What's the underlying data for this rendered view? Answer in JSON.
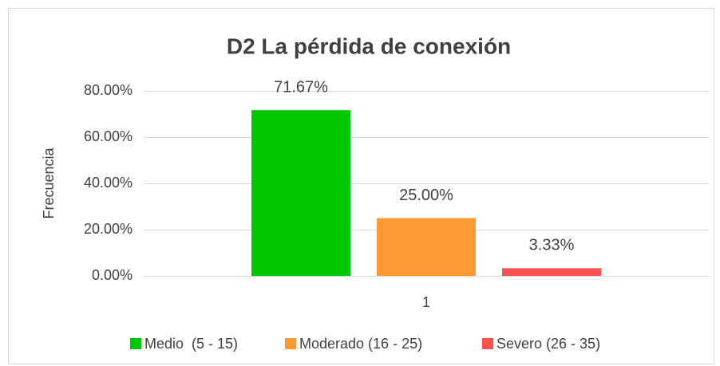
{
  "chart_data": {
    "type": "bar",
    "title": "D2 La pérdida de conexión",
    "y_label": "Frecuencia",
    "categories": [
      "1"
    ],
    "series": [
      {
        "name": "Medio  (5 - 15)",
        "color": "#00c800",
        "values": [
          71.67
        ],
        "value_labels": [
          "71.67%"
        ]
      },
      {
        "name": "Moderado (16 - 25)",
        "color": "#ff9a33",
        "values": [
          25
        ],
        "value_labels": [
          "25.00%"
        ]
      },
      {
        "name": "Severo (26 - 35)",
        "color": "#ff5050",
        "values": [
          3.33
        ],
        "value_labels": [
          "3.33%"
        ]
      }
    ],
    "ylim": [
      0,
      80
    ],
    "yticks": [
      {
        "value": 0,
        "label": "0.00%"
      },
      {
        "value": 20,
        "label": "20.00%"
      },
      {
        "value": 40,
        "label": "40.00%"
      },
      {
        "value": 60,
        "label": "60.00%"
      },
      {
        "value": 80,
        "label": "80.00%"
      }
    ],
    "grid": true,
    "legend": "bottom"
  }
}
